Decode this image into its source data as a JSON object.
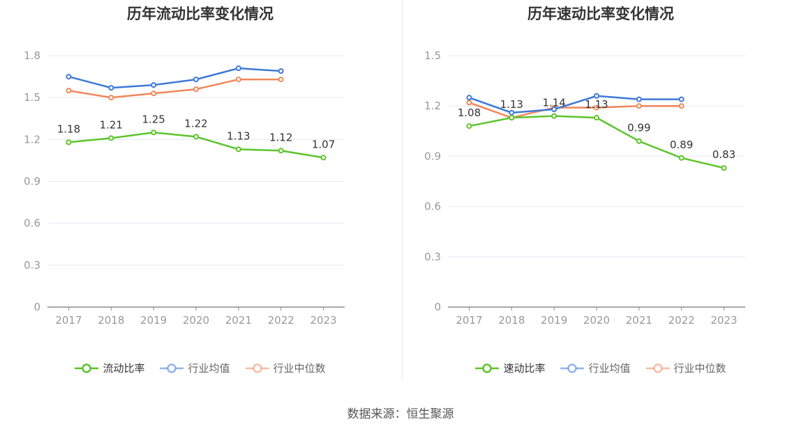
{
  "source_text": "数据来源：恒生聚源",
  "chart_data": [
    {
      "type": "line",
      "title": "历年流动比率变化情况",
      "categories": [
        "2017",
        "2018",
        "2019",
        "2020",
        "2021",
        "2022",
        "2023"
      ],
      "ylim": [
        0,
        1.8
      ],
      "yticks": [
        0,
        0.3,
        0.6,
        0.9,
        1.2,
        1.5,
        1.8
      ],
      "ytick_labels": [
        "0",
        "0.3",
        "0.6",
        "0.9",
        "1.2",
        "1.5",
        "1.8"
      ],
      "grid": true,
      "legend_position": "bottom",
      "series": [
        {
          "name": "流动比率",
          "color": "#5cc42b",
          "labeled": true,
          "values": [
            1.18,
            1.21,
            1.25,
            1.22,
            1.13,
            1.12,
            1.07
          ],
          "labels": [
            "1.18",
            "1.21",
            "1.25",
            "1.22",
            "1.13",
            "1.12",
            "1.07"
          ]
        },
        {
          "name": "行业均值",
          "color": "#3d78d8",
          "labeled": false,
          "values": [
            1.65,
            1.57,
            1.59,
            1.63,
            1.71,
            1.69,
            null
          ]
        },
        {
          "name": "行业中位数",
          "color": "#f0875a",
          "labeled": false,
          "values": [
            1.55,
            1.5,
            1.53,
            1.56,
            1.63,
            1.63,
            null
          ]
        }
      ]
    },
    {
      "type": "line",
      "title": "历年速动比率变化情况",
      "categories": [
        "2017",
        "2018",
        "2019",
        "2020",
        "2021",
        "2022",
        "2023"
      ],
      "ylim": [
        0,
        1.5
      ],
      "yticks": [
        0,
        0.3,
        0.6,
        0.9,
        1.2,
        1.5
      ],
      "ytick_labels": [
        "0",
        "0.3",
        "0.6",
        "0.9",
        "1.2",
        "1.5"
      ],
      "grid": true,
      "legend_position": "bottom",
      "series": [
        {
          "name": "速动比率",
          "color": "#5cc42b",
          "labeled": true,
          "values": [
            1.08,
            1.13,
            1.14,
            1.13,
            0.99,
            0.89,
            0.83
          ],
          "labels": [
            "1.08",
            "1.13",
            "1.14",
            "1.13",
            "0.99",
            "0.89",
            "0.83"
          ]
        },
        {
          "name": "行业均值",
          "color": "#3d78d8",
          "labeled": false,
          "values": [
            1.25,
            1.16,
            1.18,
            1.26,
            1.24,
            1.24,
            null
          ]
        },
        {
          "name": "行业中位数",
          "color": "#f0875a",
          "labeled": false,
          "values": [
            1.22,
            1.13,
            1.19,
            1.19,
            1.2,
            1.2,
            null
          ]
        }
      ]
    }
  ]
}
